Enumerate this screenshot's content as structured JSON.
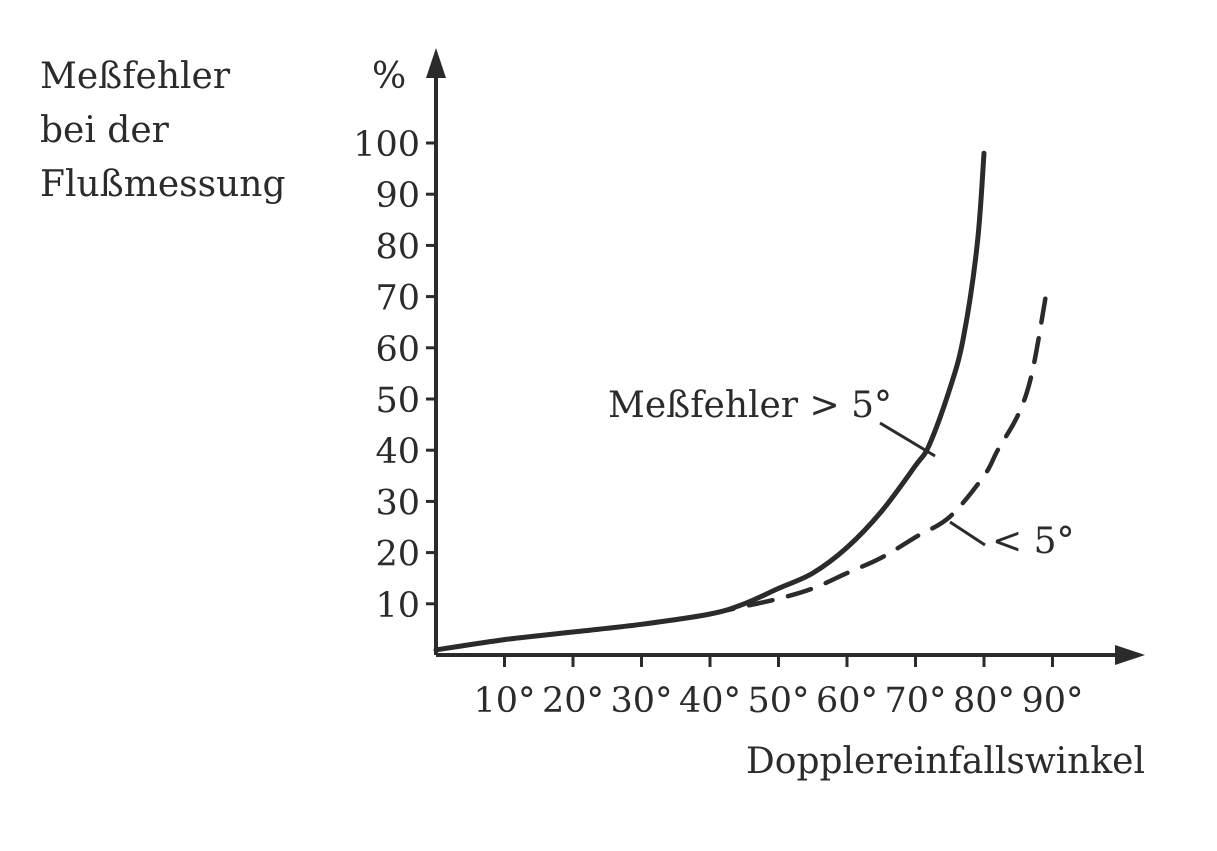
{
  "chart_data": {
    "type": "line",
    "title": "",
    "ylabel_lines": [
      "Meßfehler",
      "bei der",
      "Flußmessung"
    ],
    "yunit": "%",
    "xlabel": "Dopplereinfallswinkel",
    "xlim": [
      0,
      100
    ],
    "ylim": [
      0,
      100
    ],
    "x_ticks": [
      10,
      20,
      30,
      40,
      50,
      60,
      70,
      80,
      90
    ],
    "x_tick_labels": [
      "10°",
      "20°",
      "30°",
      "40°",
      "50°",
      "60°",
      "70°",
      "80°",
      "90°"
    ],
    "y_ticks": [
      10,
      20,
      30,
      40,
      50,
      60,
      70,
      80,
      90,
      100
    ],
    "y_tick_labels": [
      "10",
      "20",
      "30",
      "40",
      "50",
      "60",
      "70",
      "80",
      "90",
      "100"
    ],
    "grid": false,
    "legend": "none",
    "series": [
      {
        "label": "Meßfehler > 5°",
        "style": "solid",
        "color": "#2b2b2b",
        "x": [
          0,
          10,
          20,
          30,
          40,
          45,
          50,
          55,
          60,
          65,
          70,
          72,
          75,
          77,
          79,
          80
        ],
        "y": [
          1,
          3,
          4.5,
          6,
          8,
          10,
          13,
          16,
          21,
          28,
          37,
          41,
          52,
          62,
          80,
          98
        ]
      },
      {
        "label": "< 5°",
        "style": "dashed",
        "color": "#2b2b2b",
        "x": [
          40,
          45,
          50,
          55,
          60,
          65,
          70,
          75,
          80,
          82,
          85,
          87,
          89
        ],
        "y": [
          8,
          9.5,
          11,
          13,
          16,
          19,
          23,
          27,
          35,
          40,
          47,
          55,
          70
        ]
      }
    ]
  }
}
